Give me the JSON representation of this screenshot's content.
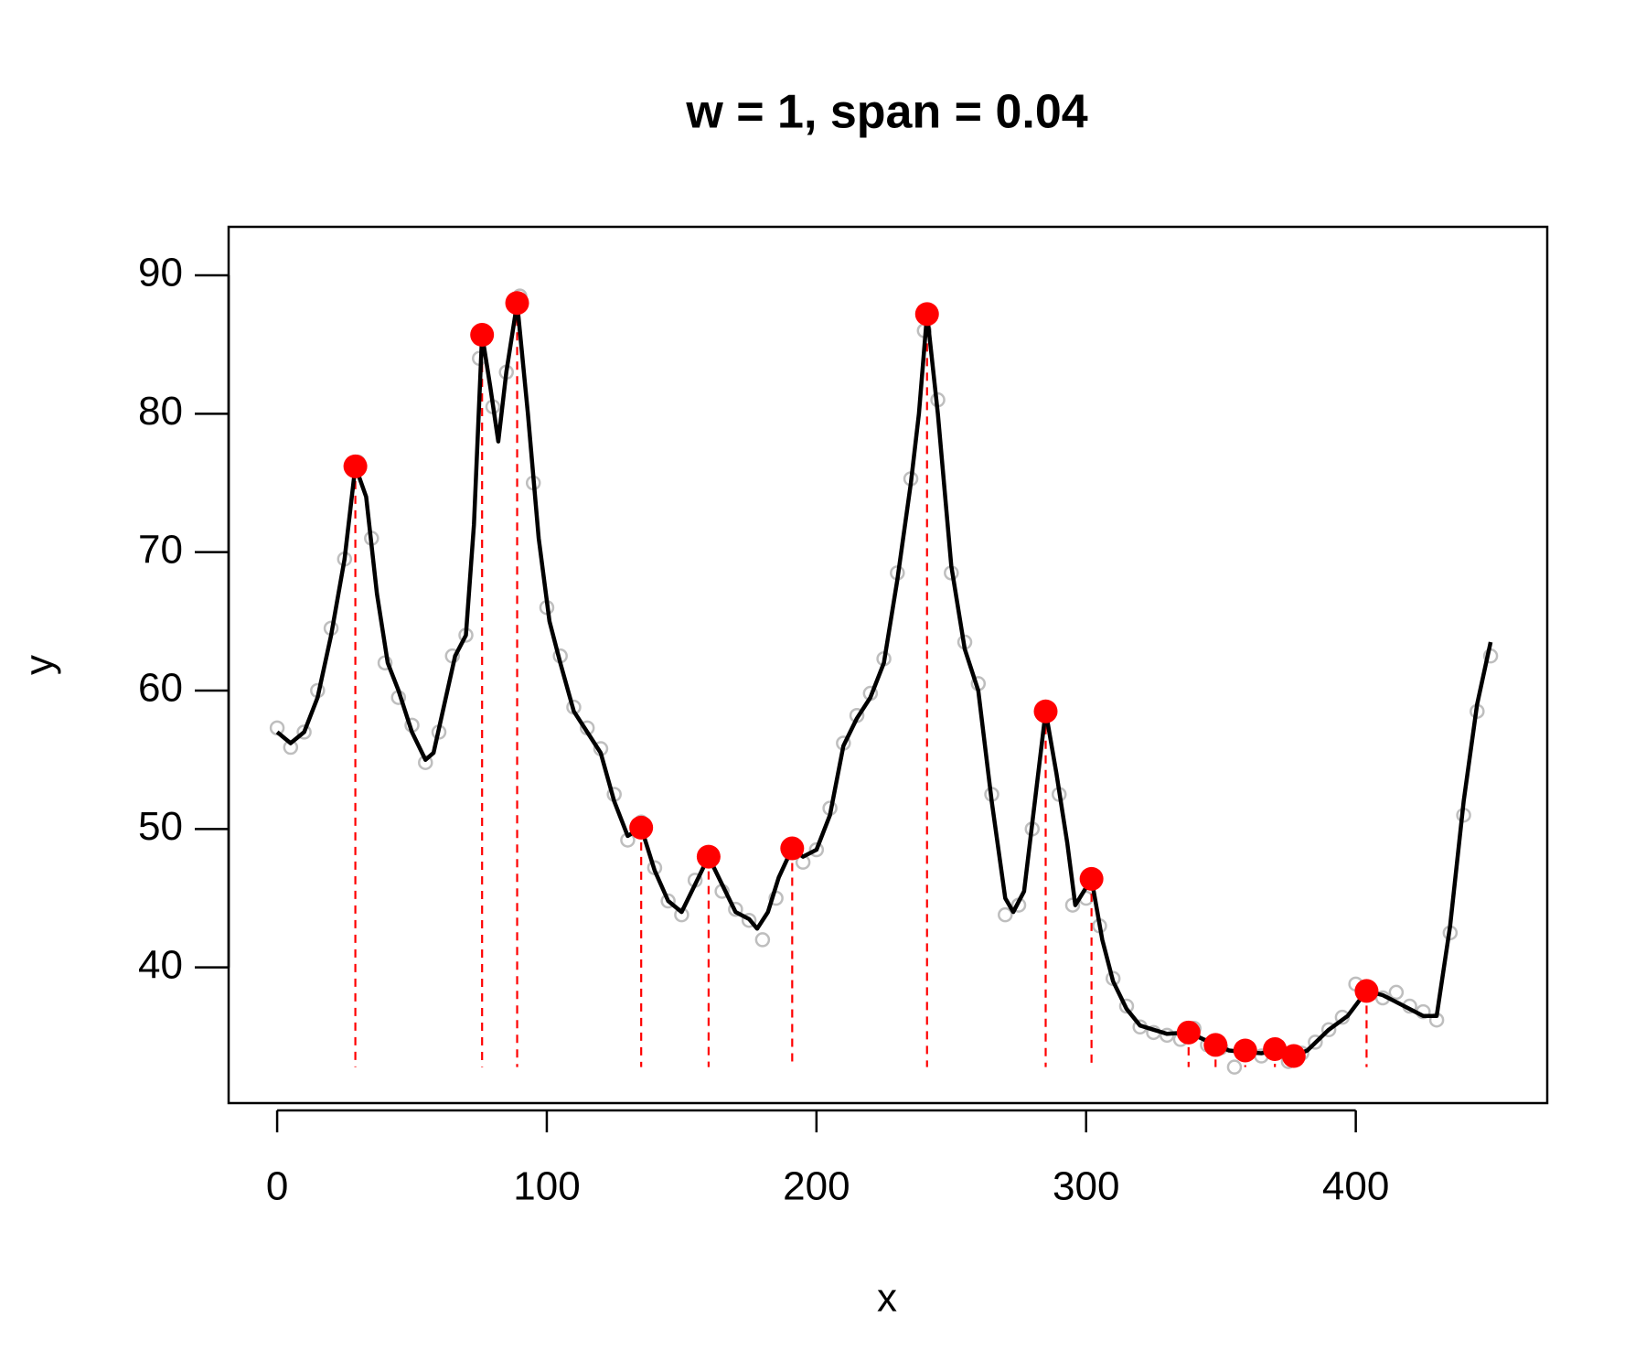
{
  "chart_data": {
    "type": "scatter",
    "title": "w = 1, span = 0.04",
    "x_label": "x",
    "y_label": "y",
    "xlim": [
      -18,
      471
    ],
    "ylim": [
      30.2,
      93.5
    ],
    "xticks": [
      0,
      100,
      200,
      300,
      400
    ],
    "yticks": [
      40,
      50,
      60,
      70,
      80,
      90
    ],
    "series": [
      {
        "kind": "points",
        "color": "#bebebe",
        "x": [
          0,
          5,
          10,
          15,
          20,
          25,
          30,
          35,
          40,
          45,
          50,
          55,
          60,
          65,
          70,
          75,
          80,
          85,
          90,
          95,
          100,
          105,
          110,
          115,
          120,
          125,
          130,
          135,
          140,
          145,
          150,
          155,
          160,
          165,
          170,
          175,
          180,
          185,
          190,
          195,
          200,
          205,
          210,
          215,
          220,
          225,
          230,
          235,
          240,
          245,
          250,
          255,
          260,
          265,
          270,
          275,
          280,
          285,
          290,
          295,
          300,
          305,
          310,
          315,
          320,
          325,
          330,
          335,
          340,
          345,
          350,
          355,
          360,
          365,
          370,
          375,
          380,
          385,
          390,
          395,
          400,
          405,
          410,
          415,
          420,
          425,
          430,
          435,
          440,
          445,
          450
        ],
        "values": [
          57.3,
          55.9,
          57,
          60,
          64.5,
          69.5,
          76.5,
          71,
          62,
          59.5,
          57.5,
          54.8,
          57,
          62.5,
          64,
          84,
          80.5,
          83,
          88.5,
          75,
          66,
          62.5,
          58.8,
          57.3,
          55.8,
          52.5,
          49.2,
          50.5,
          47.2,
          44.8,
          43.8,
          46.3,
          47.8,
          45.5,
          44.2,
          43.4,
          42,
          45,
          48.3,
          47.6,
          48.5,
          51.5,
          56.2,
          58.2,
          59.8,
          62.3,
          68.5,
          75.3,
          86,
          81,
          68.5,
          63.5,
          60.5,
          52.5,
          43.8,
          44.5,
          50,
          58.8,
          52.5,
          44.5,
          45,
          43,
          39.2,
          37.2,
          35.7,
          35.3,
          35.1,
          34.8,
          35.6,
          34.4,
          34.2,
          32.8,
          34,
          33.6,
          34.3,
          33.2,
          33.8,
          34.6,
          35.5,
          36.4,
          38.8,
          38.5,
          37.8,
          38.2,
          37.2,
          36.8,
          36.2,
          42.5,
          51,
          58.5,
          62.5
        ]
      },
      {
        "kind": "line",
        "color": "#000000",
        "x": [
          0,
          5,
          10,
          15,
          20,
          25,
          29,
          33,
          37,
          41,
          45,
          50,
          55,
          58,
          62,
          66,
          70,
          73,
          76,
          79,
          82,
          85,
          89,
          93,
          97,
          101,
          105,
          110,
          115,
          120,
          125,
          130,
          135,
          140,
          145,
          150,
          155,
          160,
          165,
          170,
          175,
          178,
          182,
          186,
          191,
          195,
          200,
          205,
          210,
          215,
          220,
          225,
          230,
          235,
          238,
          241,
          245,
          250,
          255,
          260,
          265,
          270,
          273,
          277,
          281,
          285,
          289,
          293,
          296,
          302,
          306,
          310,
          315,
          320,
          325,
          330,
          338,
          347,
          353,
          358,
          365,
          370,
          377,
          382,
          390,
          397,
          404,
          410,
          415,
          420,
          425,
          430,
          435,
          440,
          445,
          450
        ],
        "values": [
          57,
          56.2,
          57,
          59.5,
          64,
          69.5,
          76.2,
          74,
          67,
          62,
          60,
          57,
          55,
          55.5,
          59,
          62.5,
          64,
          72,
          85.7,
          82,
          78,
          83,
          88,
          80,
          71,
          65,
          62,
          58.5,
          57,
          55.5,
          52,
          49.5,
          50.1,
          47,
          44.8,
          44,
          46,
          48,
          46,
          44,
          43.5,
          42.8,
          44,
          46.5,
          48.6,
          48,
          48.5,
          51,
          56,
          58,
          59.5,
          62,
          68,
          75,
          80,
          87.2,
          80,
          69,
          63,
          60,
          52,
          45,
          44,
          45.5,
          52,
          58.5,
          54,
          49,
          44.5,
          46.4,
          42,
          39,
          37,
          35.8,
          35.5,
          35.2,
          35.3,
          34.5,
          34,
          33.9,
          33.8,
          34,
          33.6,
          34,
          35.5,
          36.5,
          38.3,
          38,
          37.5,
          37,
          36.5,
          36.5,
          43,
          52,
          59,
          63.5
        ]
      },
      {
        "kind": "peaks",
        "color": "#ff0000",
        "x": [
          29,
          76,
          89,
          135,
          160,
          191,
          241,
          285,
          302,
          338,
          348,
          359,
          370,
          377,
          404
        ],
        "values": [
          76.2,
          85.7,
          88,
          50.1,
          48,
          48.6,
          87.2,
          58.5,
          46.4,
          35.3,
          34.4,
          34,
          34.1,
          33.6,
          38.3
        ]
      }
    ]
  }
}
